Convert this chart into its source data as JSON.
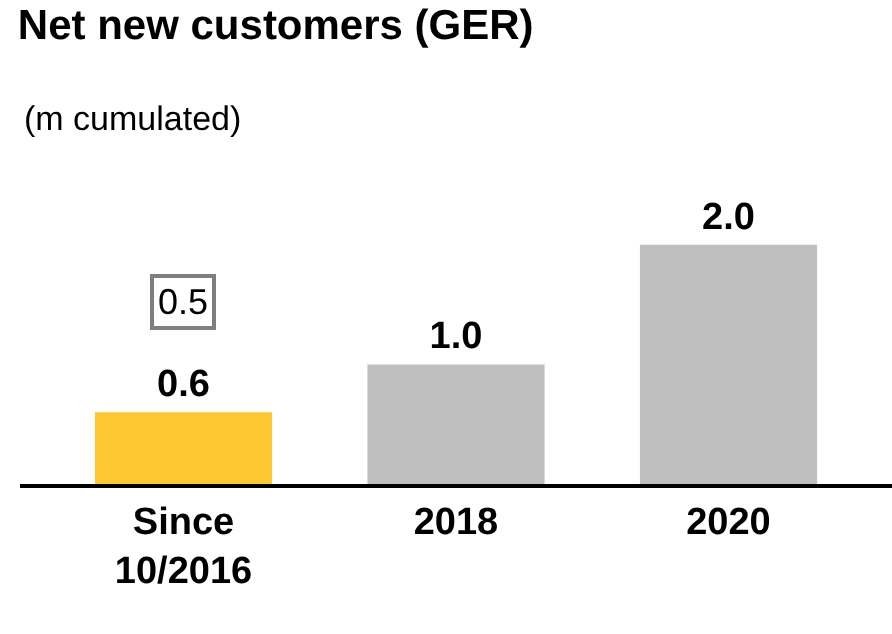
{
  "chart_data": {
    "type": "bar",
    "title": "Net new customers (GER)",
    "subtitle": "(m cumulated)",
    "categories": [
      "Since 10/2016",
      "2018",
      "2020"
    ],
    "values": [
      0.6,
      1.0,
      2.0
    ],
    "value_labels": [
      "0.6",
      "1.0",
      "2.0"
    ],
    "colors": [
      "#fdc82f",
      "#bfbfbf",
      "#bfbfbf"
    ],
    "annotations": [
      {
        "text": "0.5",
        "x": "Since 10/2016"
      }
    ]
  }
}
